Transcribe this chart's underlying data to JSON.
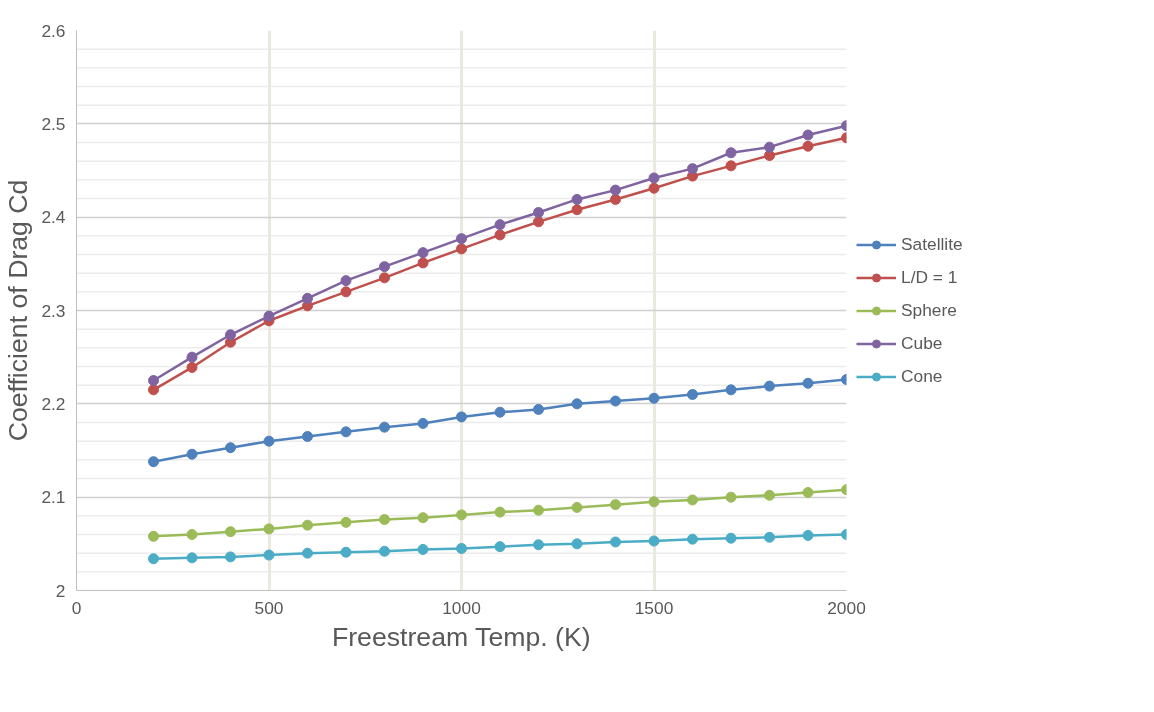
{
  "chart_data": {
    "type": "line",
    "xlabel": "Freestream Temp. (K)",
    "ylabel": "Coefficient of Drag Cd",
    "x": [
      200,
      300,
      400,
      500,
      600,
      700,
      800,
      900,
      1000,
      1100,
      1200,
      1300,
      1400,
      1500,
      1600,
      1700,
      1800,
      1900,
      2000
    ],
    "series": [
      {
        "name": "Satellite",
        "color": "#4f81bd",
        "values": [
          2.138,
          2.146,
          2.153,
          2.16,
          2.165,
          2.17,
          2.175,
          2.179,
          2.186,
          2.191,
          2.194,
          2.2,
          2.203,
          2.206,
          2.21,
          2.215,
          2.219,
          2.222,
          2.226
        ]
      },
      {
        "name": "L/D = 1",
        "color": "#c0504d",
        "values": [
          2.215,
          2.239,
          2.266,
          2.289,
          2.305,
          2.32,
          2.335,
          2.351,
          2.366,
          2.381,
          2.395,
          2.408,
          2.419,
          2.431,
          2.444,
          2.455,
          2.466,
          2.476,
          2.485
        ]
      },
      {
        "name": "Sphere",
        "color": "#9bbb59",
        "values": [
          2.058,
          2.06,
          2.063,
          2.066,
          2.07,
          2.073,
          2.076,
          2.078,
          2.081,
          2.084,
          2.086,
          2.089,
          2.092,
          2.095,
          2.097,
          2.1,
          2.102,
          2.105,
          2.108
        ]
      },
      {
        "name": "Cube",
        "color": "#8064a2",
        "values": [
          2.225,
          2.25,
          2.274,
          2.294,
          2.313,
          2.332,
          2.347,
          2.362,
          2.377,
          2.392,
          2.405,
          2.419,
          2.429,
          2.442,
          2.452,
          2.469,
          2.475,
          2.488,
          2.498
        ]
      },
      {
        "name": "Cone",
        "color": "#4bacc6",
        "values": [
          2.034,
          2.035,
          2.036,
          2.038,
          2.04,
          2.041,
          2.042,
          2.044,
          2.045,
          2.047,
          2.049,
          2.05,
          2.052,
          2.053,
          2.055,
          2.056,
          2.057,
          2.059,
          2.06
        ]
      }
    ],
    "xlim": [
      0,
      2000
    ],
    "xticks": [
      0,
      500,
      1000,
      1500,
      2000
    ],
    "ylim": [
      2,
      2.6
    ],
    "yticks": [
      2,
      2.1,
      2.2,
      2.3,
      2.4,
      2.5,
      2.6
    ],
    "grid": true,
    "legend": "right",
    "marker": "circle",
    "line_style": "solid"
  }
}
